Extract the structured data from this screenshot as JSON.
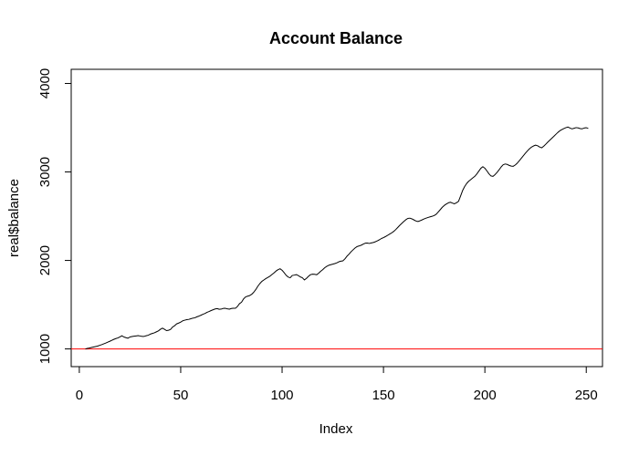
{
  "chart_data": {
    "type": "line",
    "title": "Account Balance",
    "xlabel": "Index",
    "ylabel": "real$balance",
    "xlim": [
      -4,
      258
    ],
    "ylim": [
      800,
      4160
    ],
    "x_ticks": [
      0,
      50,
      100,
      150,
      200,
      250
    ],
    "y_ticks": [
      1000,
      2000,
      3000,
      4000
    ],
    "grid": false,
    "legend": "none",
    "line_color": "#000000",
    "reference_line": {
      "y": 1000,
      "color": "#ff0000"
    },
    "series": [
      {
        "x_start": 3,
        "x_step": 1,
        "values": [
          1000,
          1006,
          1010,
          1016,
          1022,
          1027,
          1032,
          1040,
          1048,
          1057,
          1066,
          1076,
          1086,
          1097,
          1108,
          1117,
          1124,
          1136,
          1149,
          1135,
          1127,
          1121,
          1135,
          1140,
          1144,
          1147,
          1150,
          1146,
          1141,
          1142,
          1149,
          1155,
          1167,
          1175,
          1182,
          1193,
          1204,
          1222,
          1235,
          1222,
          1207,
          1211,
          1221,
          1248,
          1262,
          1283,
          1292,
          1303,
          1318,
          1325,
          1331,
          1334,
          1341,
          1348,
          1352,
          1363,
          1371,
          1381,
          1392,
          1401,
          1414,
          1423,
          1434,
          1443,
          1452,
          1456,
          1448,
          1450,
          1458,
          1459,
          1453,
          1449,
          1457,
          1460,
          1459,
          1480,
          1512,
          1528,
          1565,
          1588,
          1596,
          1603,
          1617,
          1640,
          1670,
          1707,
          1738,
          1763,
          1779,
          1795,
          1808,
          1822,
          1841,
          1859,
          1880,
          1896,
          1906,
          1889,
          1862,
          1832,
          1812,
          1804,
          1830,
          1834,
          1840,
          1829,
          1814,
          1804,
          1780,
          1797,
          1820,
          1839,
          1845,
          1843,
          1838,
          1855,
          1877,
          1895,
          1917,
          1933,
          1945,
          1952,
          1958,
          1965,
          1973,
          1985,
          1992,
          1996,
          2018,
          2048,
          2071,
          2098,
          2120,
          2141,
          2157,
          2164,
          2172,
          2184,
          2195,
          2197,
          2192,
          2198,
          2203,
          2211,
          2222,
          2234,
          2248,
          2258,
          2270,
          2283,
          2298,
          2311,
          2327,
          2348,
          2372,
          2396,
          2418,
          2440,
          2460,
          2475,
          2478,
          2470,
          2458,
          2446,
          2440,
          2448,
          2458,
          2469,
          2478,
          2486,
          2493,
          2499,
          2508,
          2522,
          2548,
          2574,
          2601,
          2622,
          2638,
          2651,
          2658,
          2648,
          2640,
          2652,
          2668,
          2727,
          2789,
          2834,
          2869,
          2895,
          2913,
          2932,
          2950,
          2977,
          3009,
          3041,
          3060,
          3042,
          3012,
          2979,
          2955,
          2950,
          2970,
          2995,
          3024,
          3056,
          3081,
          3090,
          3085,
          3074,
          3066,
          3064,
          3079,
          3100,
          3127,
          3156,
          3184,
          3212,
          3238,
          3262,
          3281,
          3294,
          3303,
          3296,
          3282,
          3273,
          3290,
          3313,
          3337,
          3359,
          3381,
          3402,
          3425,
          3447,
          3466,
          3479,
          3491,
          3501,
          3508,
          3496,
          3487,
          3494,
          3501,
          3498,
          3490,
          3488,
          3496,
          3500,
          3492
        ]
      }
    ]
  }
}
